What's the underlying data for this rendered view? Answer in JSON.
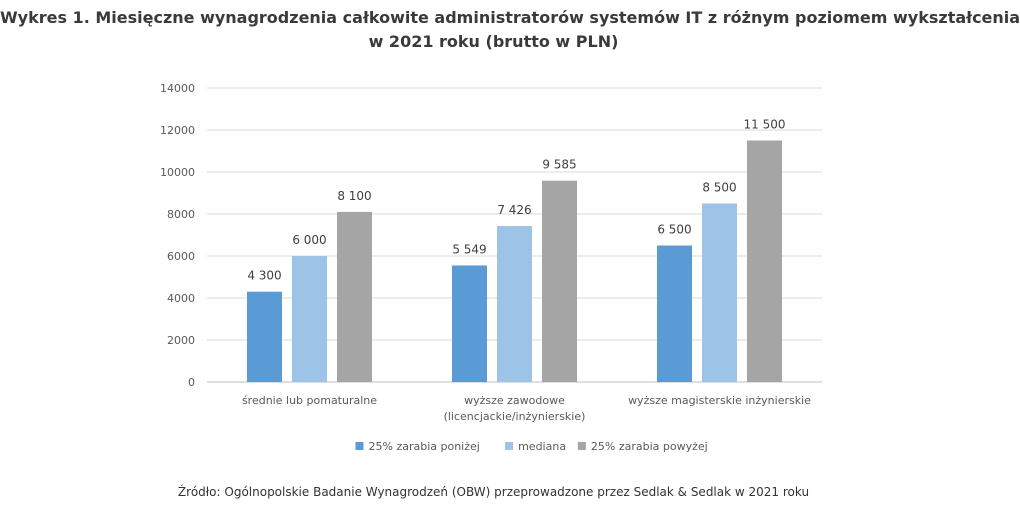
{
  "title_line1": "Wykres 1. Miesięczne wynagrodzenia całkowite administratorów systemów IT z różnym poziomem wykształcenia",
  "title_line2": "w 2021 roku (brutto w PLN)",
  "source": "Źródło: Ogólnopolskie Badanie Wynagrodzeń (OBW) przeprowadzone przez Sedlak & Sedlak w 2021 roku",
  "chart_data": {
    "type": "bar",
    "categories": [
      [
        "średnie lub pomaturalne"
      ],
      [
        "wyższe zawodowe",
        "(licencjackie/inżynierskie)"
      ],
      [
        "wyższe magisterskie inżynierskie"
      ]
    ],
    "series": [
      {
        "name": "25% zarabia poniżej",
        "values": [
          4300,
          5549,
          6500
        ],
        "labels": [
          "4 300",
          "5 549",
          "6 500"
        ],
        "color": "#5b9bd5"
      },
      {
        "name": "mediana",
        "values": [
          6000,
          7426,
          8500
        ],
        "labels": [
          "6 000",
          "7 426",
          "8 500"
        ],
        "color": "#9dc3e6"
      },
      {
        "name": "25% zarabia powyżej",
        "values": [
          8100,
          9585,
          11500
        ],
        "labels": [
          "8 100",
          "9 585",
          "11 500"
        ],
        "color": "#a5a5a5"
      }
    ],
    "ylim": [
      0,
      14000
    ],
    "yticks": [
      0,
      2000,
      4000,
      6000,
      8000,
      10000,
      12000,
      14000
    ],
    "grid": true,
    "legend": "bottom"
  }
}
